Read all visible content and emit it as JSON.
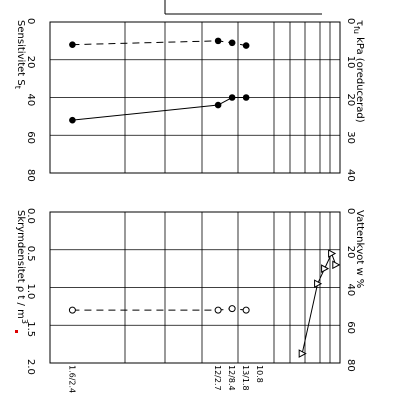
{
  "chart_data": [
    {
      "type": "line",
      "panel": "top",
      "left_axis": {
        "label": "Sensitivitet S",
        "label_sub": "t",
        "ticks": [
          "0",
          "20",
          "40",
          "60",
          "80"
        ],
        "range": [
          0,
          80
        ]
      },
      "right_axis": {
        "label_symbol": "τ",
        "label_sub": "fu",
        "label_rest": " kPa (oreducerad)",
        "ticks": [
          "0",
          "10",
          "20",
          "30",
          "40"
        ],
        "range": [
          0,
          40
        ]
      },
      "series": [
        {
          "axis": "left",
          "style": "dashed",
          "marker": "filled-circle",
          "points": [
            {
              "depth": 1.6,
              "value": 12
            },
            {
              "depth": 12.0,
              "value": 10
            },
            {
              "depth": 13.0,
              "value": 11
            },
            {
              "depth": 14.0,
              "value": 12.5
            }
          ]
        },
        {
          "axis": "right",
          "style": "solid",
          "marker": "filled-circle",
          "points": [
            {
              "depth": 1.6,
              "value": 26
            },
            {
              "depth": 12.0,
              "value": 22
            },
            {
              "depth": 13.0,
              "value": 20
            },
            {
              "depth": 14.0,
              "value": 20
            }
          ]
        }
      ]
    },
    {
      "type": "line",
      "panel": "bottom",
      "left_axis": {
        "label": "Skrymdensitet ρ t / m",
        "label_sup": "3",
        "ticks": [
          "0.0",
          "0.5",
          "1.0",
          "1.5",
          "2.0"
        ],
        "range": [
          0,
          2.0
        ]
      },
      "right_axis": {
        "label": "Vattenkvot  w  %",
        "ticks": [
          "0",
          "20",
          "40",
          "60",
          "80"
        ],
        "range": [
          0,
          80
        ]
      },
      "series": [
        {
          "axis": "left",
          "style": "dashed",
          "marker": "open-circle",
          "points": [
            {
              "depth": 1.6,
              "value": 1.3
            },
            {
              "depth": 12.0,
              "value": 1.3
            },
            {
              "depth": 13.0,
              "value": 1.28
            },
            {
              "depth": 14.0,
              "value": 1.3
            }
          ]
        },
        {
          "axis": "right",
          "style": "solid",
          "marker": "open-triangle",
          "points": [
            {
              "depth": 18.0,
              "value": 75
            },
            {
              "depth": 19.1,
              "value": 38
            },
            {
              "depth": 19.6,
              "value": 30
            },
            {
              "depth": 20.1,
              "value": 22
            },
            {
              "depth": 20.4,
              "value": 28
            }
          ]
        }
      ]
    }
  ],
  "depth_axis": {
    "ticks": [
      {
        "depth": 1.6,
        "label": "1.6/2.4"
      },
      {
        "depth": 12.0,
        "label": "12/2.7"
      },
      {
        "depth": 13.0,
        "label": "12/8.4"
      },
      {
        "depth": 14.0,
        "label": "13/1.8"
      },
      {
        "depth": 15.0,
        "label": "10.8"
      }
    ]
  }
}
